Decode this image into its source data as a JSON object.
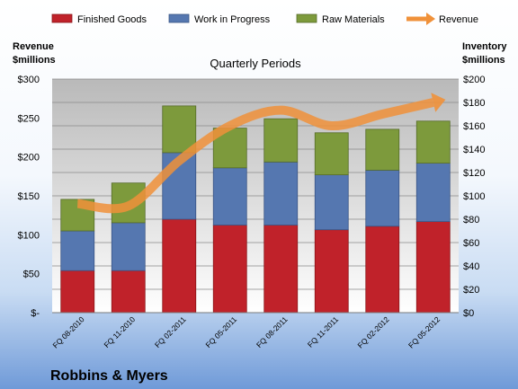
{
  "chart_data": {
    "type": "bar",
    "stacked": true,
    "subtitle": "Quarterly Periods",
    "company": "Robbins & Myers",
    "y_left_label_line1": "Revenue",
    "y_left_label_line2": "$millions",
    "y_right_label_line1": "Inventory",
    "y_right_label_line2": "$millions",
    "categories": [
      "FQ 08-2010",
      "FQ 11-2010",
      "FQ 02-2011",
      "FQ 05-2011",
      "FQ 08-2011",
      "FQ 11-2011",
      "FQ 02-2012",
      "FQ 05-2012"
    ],
    "y_left_range": [
      0,
      300
    ],
    "y_left_ticks": [
      "$-",
      "$50",
      "$100",
      "$150",
      "$200",
      "$250",
      "$300"
    ],
    "y_right_range": [
      0,
      200
    ],
    "y_right_ticks": [
      "$0",
      "$20",
      "$40",
      "$60",
      "$80",
      "$100",
      "$120",
      "$140",
      "$160",
      "$180",
      "$200"
    ],
    "grid": true,
    "legend_position": "top",
    "series": [
      {
        "name": "Finished Goods",
        "axis": "right",
        "color": "#c0222a",
        "values": [
          36,
          36,
          80,
          75,
          75,
          71,
          74,
          78
        ]
      },
      {
        "name": "Work in Progress",
        "axis": "right",
        "color": "#5577b0",
        "values": [
          34,
          41,
          57,
          49,
          54,
          47,
          48,
          50
        ]
      },
      {
        "name": "Raw Materials",
        "axis": "right",
        "color": "#7d9a3c",
        "values": [
          27,
          34,
          40,
          34,
          37,
          36,
          35,
          36
        ]
      }
    ],
    "revenue": {
      "name": "Revenue",
      "axis": "left",
      "color": "#f0913a",
      "values": [
        140,
        137,
        195,
        240,
        260,
        240,
        255,
        270
      ]
    }
  }
}
